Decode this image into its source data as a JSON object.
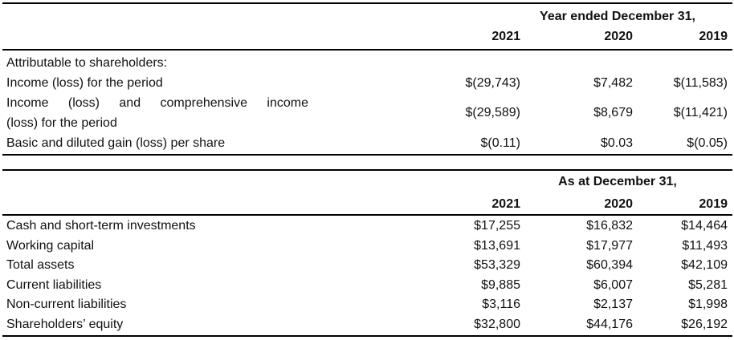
{
  "table1": {
    "period_header": "Year ended December 31,",
    "years": [
      "2021",
      "2020",
      "2019"
    ],
    "section_label": "Attributable to shareholders:",
    "rows": [
      {
        "label": "Income (loss) for the period",
        "values": [
          "$(29,743)",
          "$7,482",
          "$(11,583)"
        ]
      },
      {
        "label_line1": "Income (loss) and comprehensive income",
        "label_line2": "(loss) for the period",
        "values": [
          "$(29,589)",
          "$8,679",
          "$(11,421)"
        ]
      },
      {
        "label": "Basic and diluted gain (loss) per share",
        "values": [
          "$(0.11)",
          "$0.03",
          "$(0.05)"
        ]
      }
    ]
  },
  "table2": {
    "period_header": "As at December 31,",
    "years": [
      "2021",
      "2020",
      "2019"
    ],
    "rows": [
      {
        "label": "Cash and short-term investments",
        "values": [
          "$17,255",
          "$16,832",
          "$14,464"
        ]
      },
      {
        "label": "Working capital",
        "values": [
          "$13,691",
          "$17,977",
          "$11,493"
        ]
      },
      {
        "label": "Total assets",
        "values": [
          "$53,329",
          "$60,394",
          "$42,109"
        ]
      },
      {
        "label": "Current liabilities",
        "values": [
          "$9,885",
          "$6,007",
          "$5,281"
        ]
      },
      {
        "label": "Non-current liabilities",
        "values": [
          "$3,116",
          "$2,137",
          "$1,998"
        ]
      },
      {
        "label": "Shareholders’ equity",
        "values": [
          "$32,800",
          "$44,176",
          "$26,192"
        ]
      }
    ]
  }
}
